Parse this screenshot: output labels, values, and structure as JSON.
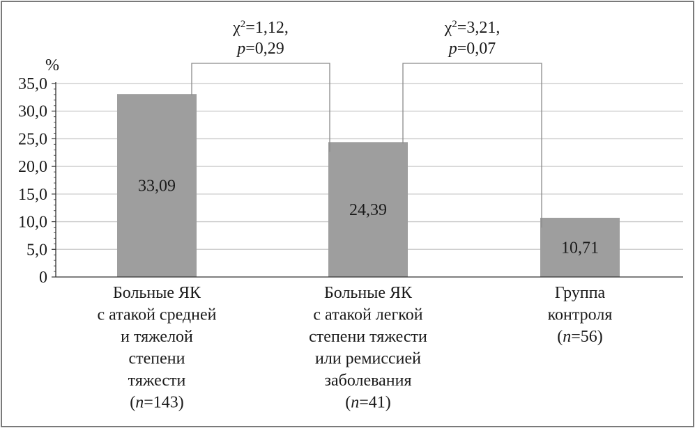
{
  "chart_data": {
    "type": "bar",
    "ylabel": "%",
    "ylim": [
      0,
      35
    ],
    "ytick_labels": [
      "0",
      "5,0",
      "10,0",
      "15,0",
      "20,0",
      "25,0",
      "30,0",
      "35,0"
    ],
    "grid": true,
    "categories": [
      {
        "lines": [
          "Больные ЯК",
          "с атакой средней",
          "и тяжелой",
          "степени",
          "тяжести"
        ],
        "n_prefix": "(",
        "n_var": "n",
        "n_rest": "=143)"
      },
      {
        "lines": [
          "Больные ЯК",
          "с атакой легкой",
          "степени тяжести",
          "или ремиссией",
          "заболевания"
        ],
        "n_prefix": "(",
        "n_var": "n",
        "n_rest": "=41)"
      },
      {
        "lines": [
          "Группа",
          "контроля"
        ],
        "n_prefix": "(",
        "n_var": "n",
        "n_rest": "=56)"
      }
    ],
    "values": [
      33.09,
      24.39,
      10.71
    ],
    "value_labels": [
      "33,09",
      "24,39",
      "10,71"
    ],
    "bar_color": "#9e9e9e",
    "annotations": [
      {
        "between": [
          0,
          1
        ],
        "chi": "χ",
        "chi_sup": "2",
        "chi_rest": "=1,12,",
        "p_var": "p",
        "p_rest": "=0,29"
      },
      {
        "between": [
          1,
          2
        ],
        "chi": "χ",
        "chi_sup": "2",
        "chi_rest": "=3,21,",
        "p_var": "p",
        "p_rest": "=0,07"
      }
    ]
  }
}
